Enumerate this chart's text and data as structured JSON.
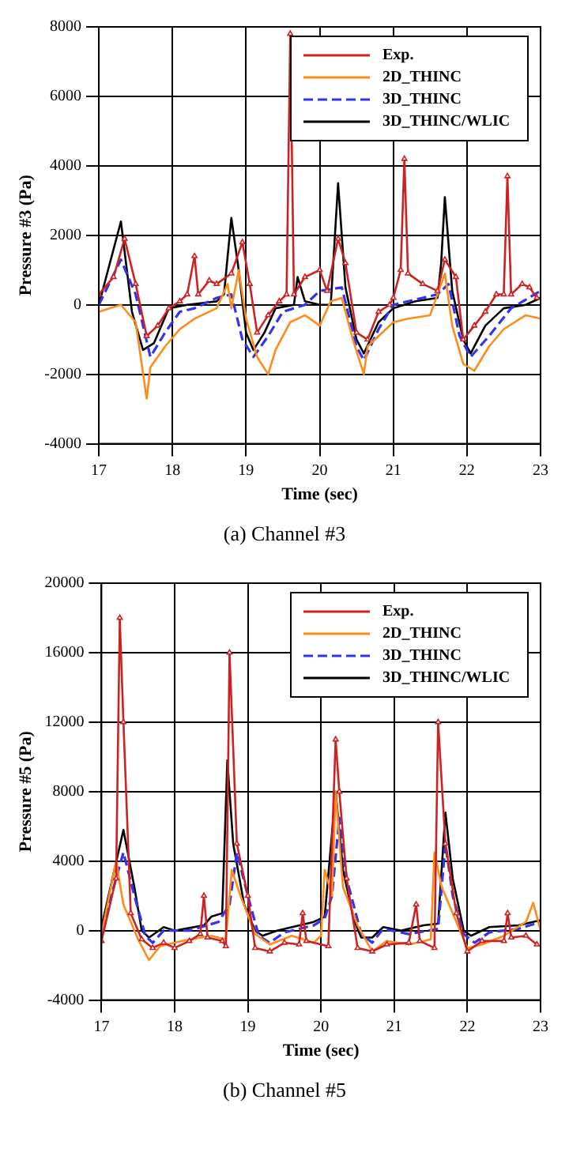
{
  "chart_data": [
    {
      "type": "line",
      "xlabel": "Time (sec)",
      "ylabel": "Pressure #3 (Pa)",
      "xlim": [
        17,
        23
      ],
      "xticks": [
        17,
        18,
        19,
        20,
        21,
        22,
        23
      ],
      "ylim": [
        -4000,
        8000
      ],
      "yticks": [
        -4000,
        -2000,
        0,
        2000,
        4000,
        6000,
        8000
      ],
      "grid": true,
      "legend": "top right",
      "annotations": [
        "(a) Channel #3"
      ],
      "series": [
        {
          "name": "Exp.",
          "color": "#cc2222",
          "marker": "triangle",
          "line_style": "solid",
          "x": [
            17.0,
            17.2,
            17.35,
            17.5,
            17.65,
            17.8,
            17.95,
            18.1,
            18.2,
            18.3,
            18.35,
            18.5,
            18.6,
            18.8,
            18.95,
            19.05,
            19.15,
            19.3,
            19.45,
            19.55,
            19.6,
            19.65,
            19.8,
            20.0,
            20.1,
            20.25,
            20.35,
            20.5,
            20.65,
            20.8,
            20.95,
            21.0,
            21.1,
            21.15,
            21.2,
            21.4,
            21.6,
            21.7,
            21.85,
            21.95,
            22.1,
            22.25,
            22.4,
            22.5,
            22.55,
            22.6,
            22.75,
            22.85,
            22.95
          ],
          "values": [
            300,
            800,
            1900,
            600,
            -900,
            -600,
            -100,
            100,
            300,
            1400,
            300,
            700,
            600,
            900,
            1800,
            600,
            -800,
            -300,
            100,
            300,
            7800,
            300,
            800,
            1000,
            400,
            1900,
            1200,
            -800,
            -1000,
            -200,
            0,
            200,
            1000,
            4200,
            900,
            600,
            400,
            1300,
            800,
            -1000,
            -600,
            -200,
            300,
            300,
            3700,
            300,
            600,
            500,
            200
          ]
        },
        {
          "name": "2D_THINC",
          "color": "#ff8c1a",
          "marker": "none",
          "line_style": "solid",
          "x": [
            17.0,
            17.3,
            17.5,
            17.65,
            17.7,
            17.9,
            18.1,
            18.3,
            18.6,
            18.75,
            18.8,
            18.9,
            19.0,
            19.15,
            19.3,
            19.4,
            19.6,
            19.8,
            20.0,
            20.15,
            20.3,
            20.45,
            20.6,
            20.65,
            20.8,
            21.0,
            21.2,
            21.5,
            21.7,
            21.8,
            21.95,
            22.1,
            22.3,
            22.5,
            22.8,
            23.0
          ],
          "values": [
            -200,
            0,
            -500,
            -2700,
            -1800,
            -1200,
            -700,
            -400,
            -100,
            600,
            -100,
            1000,
            -400,
            -1500,
            -2000,
            -1300,
            -500,
            -300,
            -600,
            100,
            200,
            -1000,
            -2000,
            -1200,
            -900,
            -500,
            -400,
            -300,
            900,
            -600,
            -1700,
            -1900,
            -1200,
            -700,
            -300,
            -400
          ]
        },
        {
          "name": "3D_THINC",
          "color": "#3333ee",
          "marker": "none",
          "line_style": "dashed",
          "x": [
            17.0,
            17.3,
            17.5,
            17.7,
            17.9,
            18.1,
            18.3,
            18.6,
            18.8,
            18.95,
            19.1,
            19.3,
            19.5,
            19.8,
            20.0,
            20.3,
            20.5,
            20.6,
            20.8,
            21.0,
            21.4,
            21.6,
            21.75,
            21.9,
            22.05,
            22.3,
            22.6,
            23.0
          ],
          "values": [
            0,
            1300,
            300,
            -1500,
            -800,
            -200,
            -100,
            200,
            300,
            -1000,
            -1500,
            -900,
            -200,
            0,
            400,
            500,
            -1200,
            -1600,
            -700,
            0,
            200,
            300,
            600,
            -900,
            -1500,
            -900,
            -100,
            400
          ]
        },
        {
          "name": "3D_THINC/WLIC",
          "color": "#000000",
          "marker": "none",
          "line_style": "solid",
          "x": [
            17.0,
            17.3,
            17.45,
            17.6,
            17.75,
            17.95,
            18.2,
            18.6,
            18.7,
            18.8,
            18.9,
            19.0,
            19.1,
            19.25,
            19.4,
            19.65,
            19.7,
            19.8,
            20.0,
            20.15,
            20.25,
            20.35,
            20.5,
            20.6,
            20.8,
            21.0,
            21.3,
            21.6,
            21.65,
            21.7,
            21.8,
            21.95,
            22.05,
            22.25,
            22.5,
            22.8,
            23.0
          ],
          "values": [
            0,
            2400,
            -200,
            -1300,
            -1100,
            -100,
            0,
            100,
            300,
            2500,
            1000,
            -800,
            -1300,
            -800,
            -100,
            0,
            800,
            100,
            0,
            0,
            3500,
            500,
            -1000,
            -1400,
            -500,
            -100,
            100,
            200,
            1200,
            3100,
            400,
            -1000,
            -1400,
            -600,
            -100,
            0,
            200
          ]
        }
      ]
    },
    {
      "type": "line",
      "xlabel": "Time (sec)",
      "ylabel": "Pressure #5 (Pa)",
      "xlim": [
        17,
        23
      ],
      "xticks": [
        17,
        18,
        19,
        20,
        21,
        22,
        23
      ],
      "ylim": [
        -4000,
        20000
      ],
      "yticks": [
        -4000,
        0,
        4000,
        8000,
        12000,
        16000,
        20000
      ],
      "grid": true,
      "legend": "top right",
      "annotations": [
        "(b) Channel #5"
      ],
      "series": [
        {
          "name": "Exp.",
          "color": "#cc2222",
          "marker": "triangle",
          "line_style": "solid",
          "x": [
            17.0,
            17.2,
            17.25,
            17.3,
            17.4,
            17.55,
            17.7,
            17.85,
            18.0,
            18.2,
            18.35,
            18.4,
            18.45,
            18.65,
            18.7,
            18.75,
            18.85,
            19.0,
            19.1,
            19.3,
            19.5,
            19.7,
            19.75,
            19.8,
            20.1,
            20.2,
            20.25,
            20.35,
            20.5,
            20.7,
            20.9,
            21.2,
            21.3,
            21.35,
            21.55,
            21.6,
            21.7,
            21.85,
            22.0,
            22.2,
            22.5,
            22.55,
            22.6,
            22.8,
            22.95
          ],
          "values": [
            -600,
            3000,
            18000,
            12000,
            1000,
            -500,
            -1000,
            -700,
            -1000,
            -600,
            -200,
            2000,
            -400,
            -600,
            -900,
            16000,
            5000,
            2000,
            -1000,
            -1200,
            -700,
            -800,
            1000,
            -600,
            -900,
            11000,
            8000,
            3000,
            -1000,
            -1200,
            -800,
            -700,
            1500,
            -600,
            -1000,
            12000,
            5000,
            1000,
            -1200,
            -600,
            -600,
            1000,
            -400,
            -300,
            -800
          ]
        },
        {
          "name": "2D_THINC",
          "color": "#ff8c1a",
          "marker": "none",
          "line_style": "solid",
          "x": [
            17.0,
            17.2,
            17.3,
            17.5,
            17.65,
            17.8,
            18.1,
            18.5,
            18.7,
            18.78,
            18.9,
            19.1,
            19.3,
            19.6,
            19.9,
            20.0,
            20.05,
            20.15,
            20.2,
            20.3,
            20.5,
            20.7,
            20.9,
            21.2,
            21.5,
            21.55,
            21.65,
            21.8,
            22.0,
            22.2,
            22.5,
            22.8,
            22.9,
            23.0
          ],
          "values": [
            -200,
            4000,
            1500,
            -500,
            -1700,
            -900,
            -600,
            -300,
            -500,
            3500,
            2000,
            -200,
            -800,
            -300,
            -700,
            -300,
            3500,
            2000,
            8000,
            2500,
            300,
            -1200,
            -600,
            -800,
            -500,
            4500,
            2500,
            1000,
            -1000,
            -800,
            -300,
            500,
            1600,
            0
          ]
        },
        {
          "name": "3D_THINC",
          "color": "#3333ee",
          "marker": "none",
          "line_style": "dashed",
          "x": [
            17.0,
            17.3,
            17.45,
            17.6,
            17.7,
            17.85,
            18.2,
            18.6,
            18.75,
            18.85,
            19.0,
            19.15,
            19.3,
            19.5,
            19.9,
            20.05,
            20.15,
            20.25,
            20.35,
            20.55,
            20.7,
            20.85,
            21.2,
            21.6,
            21.7,
            21.8,
            21.95,
            22.1,
            22.3,
            22.7,
            23.0
          ],
          "values": [
            0,
            4500,
            2000,
            -300,
            -700,
            0,
            0,
            500,
            1500,
            4500,
            2000,
            -300,
            -700,
            -100,
            300,
            700,
            2000,
            6500,
            3000,
            -200,
            -700,
            100,
            -200,
            100,
            5000,
            2000,
            -200,
            -700,
            -100,
            100,
            500
          ]
        },
        {
          "name": "3D_THINC/WLIC",
          "color": "#000000",
          "marker": "none",
          "line_style": "solid",
          "x": [
            17.0,
            17.3,
            17.45,
            17.55,
            17.65,
            17.85,
            18.0,
            18.4,
            18.5,
            18.65,
            18.72,
            18.8,
            18.95,
            19.1,
            19.2,
            19.4,
            19.9,
            20.05,
            20.2,
            20.3,
            20.45,
            20.55,
            20.7,
            20.85,
            21.1,
            21.4,
            21.6,
            21.7,
            21.8,
            21.95,
            22.05,
            22.3,
            22.7,
            23.0
          ],
          "values": [
            200,
            5800,
            2500,
            0,
            -400,
            200,
            0,
            300,
            800,
            1000,
            9800,
            5000,
            1500,
            0,
            -300,
            0,
            500,
            800,
            8000,
            3500,
            600,
            -400,
            -400,
            200,
            0,
            300,
            400,
            6800,
            3000,
            0,
            -300,
            200,
            300,
            600
          ]
        }
      ]
    }
  ]
}
